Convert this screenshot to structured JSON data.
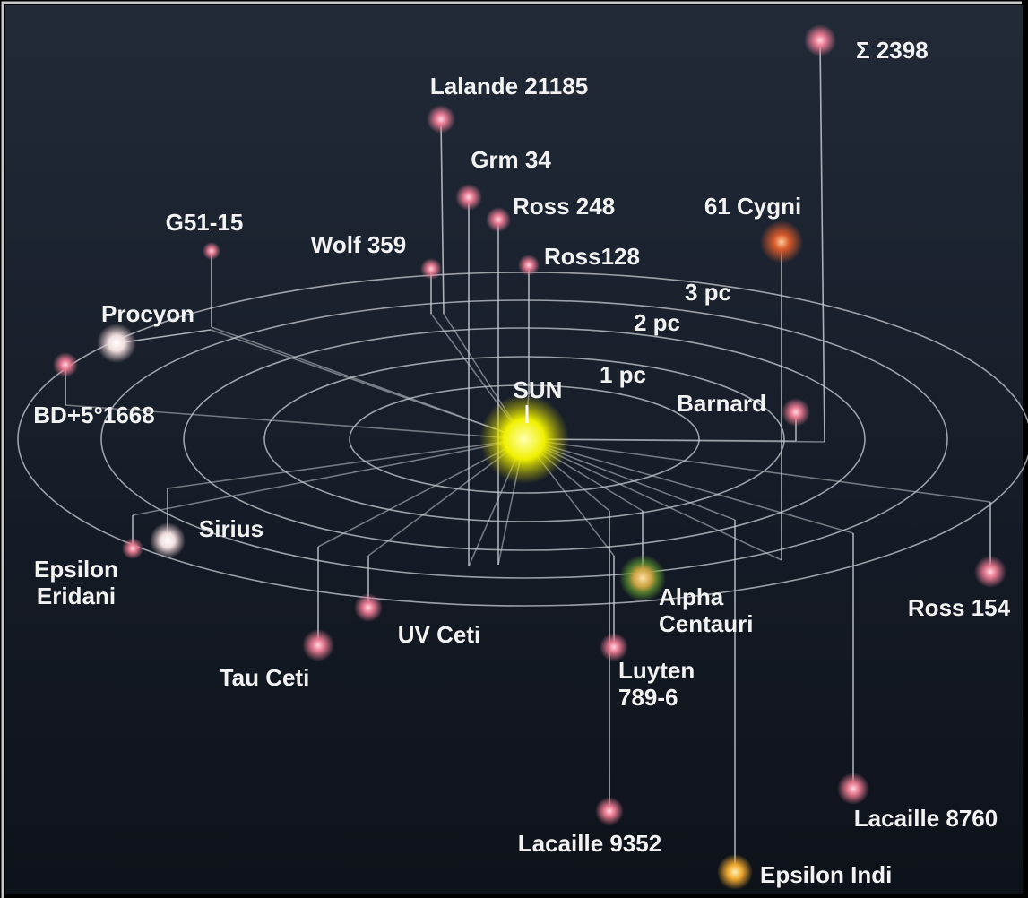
{
  "stars": [
    {
      "label": "Σ 2398"
    },
    {
      "label": "Lalande 21185"
    },
    {
      "label": "Grm 34"
    },
    {
      "label": "Ross 248"
    },
    {
      "label": "61 Cygni"
    },
    {
      "label": "G51-15"
    },
    {
      "label": "Wolf 359"
    },
    {
      "label": "Ross128"
    },
    {
      "label": "Procyon"
    },
    {
      "label": "BD+5°1668"
    },
    {
      "label": "SUN"
    },
    {
      "label": "Barnard"
    },
    {
      "label": "Sirius"
    },
    {
      "label": [
        "Epsilon",
        "Eridani"
      ]
    },
    {
      "label": [
        "Alpha",
        "Centauri"
      ]
    },
    {
      "label": "Ross 154"
    },
    {
      "label": "UV Ceti"
    },
    {
      "label": "Tau Ceti"
    },
    {
      "label": [
        "Luyten",
        "789-6"
      ]
    },
    {
      "label": "Lacaille 9352"
    },
    {
      "label": "Lacaille 8760"
    },
    {
      "label": "Epsilon Indi"
    }
  ],
  "rings": [
    {
      "label": "1 pc"
    },
    {
      "label": "2 pc"
    },
    {
      "label": "3 pc"
    }
  ]
}
